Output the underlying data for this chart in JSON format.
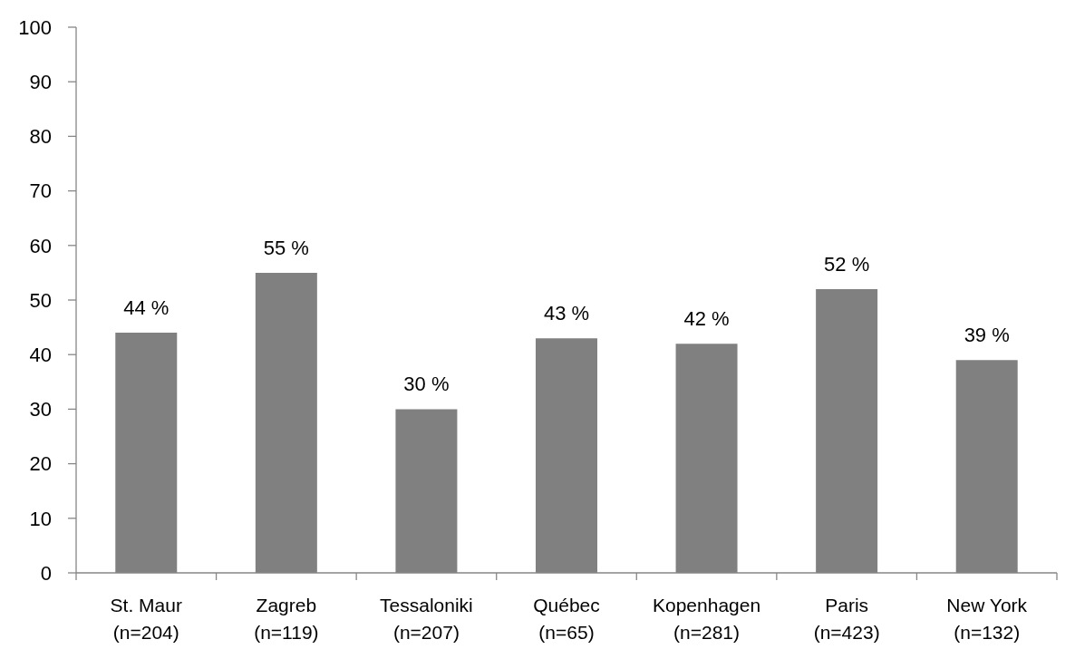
{
  "chart_data": {
    "type": "bar",
    "categories": [
      "St. Maur (n=204)",
      "Zagreb (n=119)",
      "Tessaloniki (n=207)",
      "Québec (n=65)",
      "Kopenhagen (n=281)",
      "Paris (n=423)",
      "New York (n=132)"
    ],
    "values": [
      44,
      55,
      30,
      43,
      42,
      52,
      39
    ],
    "value_labels": [
      "44 %",
      "55 %",
      "30 %",
      "43 %",
      "42 %",
      "52 %",
      "39 %"
    ],
    "color": "#808080",
    "ylim": [
      0,
      100
    ],
    "yticks": [
      0,
      10,
      20,
      30,
      40,
      50,
      60,
      70,
      80,
      90,
      100
    ]
  }
}
